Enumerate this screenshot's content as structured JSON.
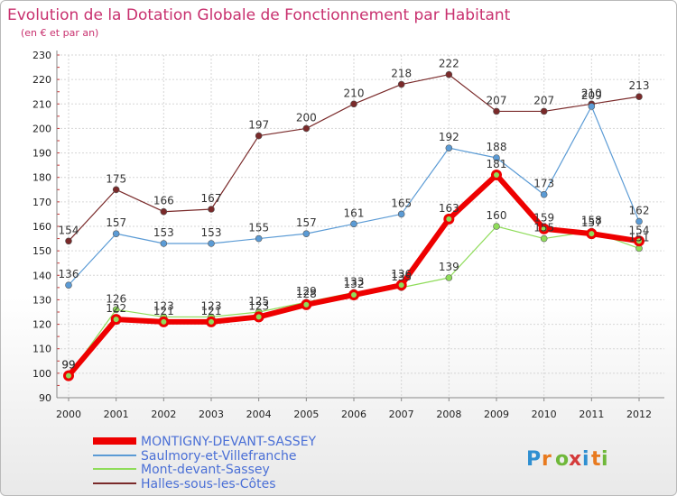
{
  "chart_data": {
    "type": "line",
    "title": "Evolution de la Dotation Globale de Fonctionnement par Habitant",
    "subtitle": "(en € et par an)",
    "categories": [
      "2000",
      "2001",
      "2002",
      "2003",
      "2004",
      "2005",
      "2006",
      "2007",
      "2008",
      "2009",
      "2010",
      "2011",
      "2012"
    ],
    "ylim": [
      90,
      230
    ],
    "yticks": [
      90,
      100,
      110,
      120,
      130,
      140,
      150,
      160,
      170,
      180,
      190,
      200,
      210,
      220,
      230
    ],
    "grid": true,
    "legend_position": "bottom-left",
    "series": [
      {
        "name": "MONTIGNY-DEVANT-SASSEY",
        "color": "#ee0000",
        "values": [
          99,
          122,
          121,
          121,
          123,
          128,
          132,
          136,
          163,
          181,
          159,
          157,
          154
        ]
      },
      {
        "name": "Saulmory-et-Villefranche",
        "color": "#5b9bd5",
        "values": [
          136,
          157,
          153,
          153,
          155,
          157,
          161,
          165,
          192,
          188,
          173,
          209,
          162
        ]
      },
      {
        "name": "Mont-devant-Sassey",
        "color": "#8fdc5a",
        "values": [
          99,
          126,
          123,
          123,
          125,
          129,
          133,
          135,
          139,
          160,
          155,
          158,
          151
        ]
      },
      {
        "name": "Halles-sous-les-Côtes",
        "color": "#7a2a2a",
        "values": [
          154,
          175,
          166,
          167,
          197,
          200,
          210,
          218,
          222,
          207,
          207,
          210,
          213
        ]
      }
    ]
  },
  "logo": {
    "letters": [
      "P",
      "r",
      "o",
      "x",
      "i",
      "t",
      "i"
    ]
  }
}
